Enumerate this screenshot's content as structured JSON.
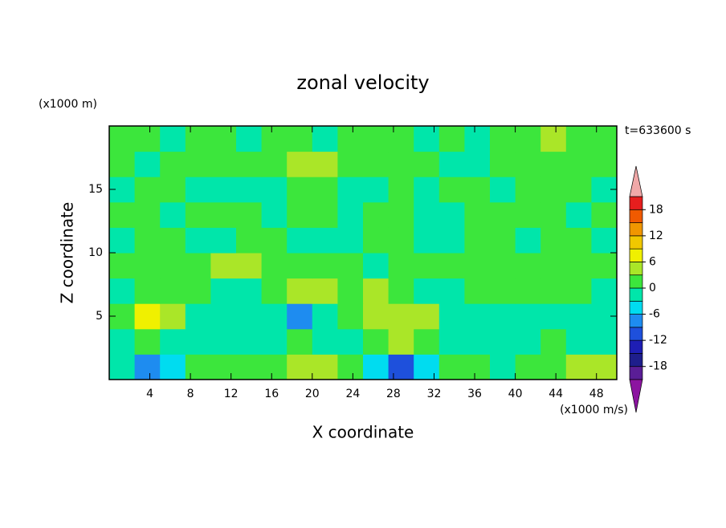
{
  "chart_data": {
    "type": "contour",
    "title": "zonal velocity",
    "y_unit": "(x1000 m)",
    "x_unit": "(x1000 m/s)",
    "time_label": "t=633600 s",
    "xlabel": "X coordinate",
    "ylabel": "Z coordinate",
    "xlim": [
      0,
      50
    ],
    "ylim": [
      0,
      20
    ],
    "xticks": [
      4,
      8,
      12,
      16,
      20,
      24,
      28,
      32,
      36,
      40,
      44,
      48
    ],
    "yticks": [
      5,
      10,
      15
    ],
    "x": [
      1.25,
      3.75,
      6.25,
      8.75,
      11.25,
      13.75,
      16.25,
      18.75,
      21.25,
      23.75,
      26.25,
      28.75,
      31.25,
      33.75,
      36.25,
      38.75,
      41.25,
      43.75,
      46.25,
      48.75
    ],
    "y": [
      1,
      3,
      5,
      7,
      9,
      11,
      13,
      15,
      17,
      19
    ],
    "z": [
      [
        -2,
        -8,
        -4,
        1,
        2,
        1,
        2,
        4,
        4,
        1,
        -5,
        -10,
        -4,
        1,
        1,
        -1,
        1,
        2,
        5,
        4
      ],
      [
        -1,
        1,
        -2,
        -3,
        -1,
        -2,
        -1,
        1,
        -2,
        -1,
        2,
        4,
        2,
        -1,
        -2,
        -1,
        -2,
        1,
        -1,
        -2
      ],
      [
        2,
        6,
        5,
        -1,
        -2,
        -3,
        -2,
        -8,
        -2,
        1,
        4,
        5,
        3,
        -1,
        -2,
        -1,
        -2,
        -1,
        -3,
        -1
      ],
      [
        -1,
        2,
        1,
        2,
        -1,
        -1,
        2,
        3,
        4,
        2,
        4,
        1,
        -1,
        -1,
        1,
        2,
        1,
        1,
        1,
        -1
      ],
      [
        1,
        2,
        1,
        2,
        3,
        4,
        2,
        1,
        2,
        1,
        -1,
        1,
        2,
        1,
        1,
        1,
        1,
        2,
        1,
        1
      ],
      [
        -1,
        1,
        1,
        -1,
        -1,
        1,
        1,
        -1,
        -2,
        -1,
        1,
        1,
        -1,
        -1,
        1,
        1,
        -1,
        1,
        1,
        -1
      ],
      [
        1,
        1,
        -1,
        1,
        1,
        1,
        -1,
        1,
        1,
        -1,
        1,
        1,
        -1,
        -1,
        1,
        1,
        2,
        1,
        -1,
        1
      ],
      [
        -1,
        1,
        1,
        -1,
        -1,
        -1,
        -1,
        1,
        1,
        -1,
        -1,
        1,
        -2,
        1,
        1,
        -1,
        1,
        1,
        1,
        -1
      ],
      [
        1,
        -1,
        1,
        1,
        2,
        1,
        1,
        3,
        3,
        2,
        1,
        1,
        1,
        -1,
        -1,
        1,
        1,
        1,
        1,
        1
      ],
      [
        1,
        1,
        -1,
        1,
        1,
        -1,
        1,
        1,
        -1,
        1,
        2,
        1,
        -1,
        1,
        -1,
        1,
        1,
        3,
        1,
        1
      ]
    ],
    "levels": [
      -21,
      -18,
      -15,
      -12,
      -9,
      -6,
      -3,
      0,
      3,
      6,
      9,
      12,
      15,
      18,
      21
    ],
    "colors": [
      "#5a1e96",
      "#1e1e8c",
      "#1e1eb4",
      "#1e50dc",
      "#1e8cf0",
      "#00dcf0",
      "#00e6aa",
      "#3ce63c",
      "#aae628",
      "#f0f000",
      "#f0c800",
      "#f09600",
      "#f05a00",
      "#e61e1e"
    ],
    "under_color": "#8c14a0",
    "over_color": "#f0a8a8",
    "colorbar_ticks": [
      -18,
      -12,
      -6,
      0,
      6,
      12,
      18
    ]
  }
}
